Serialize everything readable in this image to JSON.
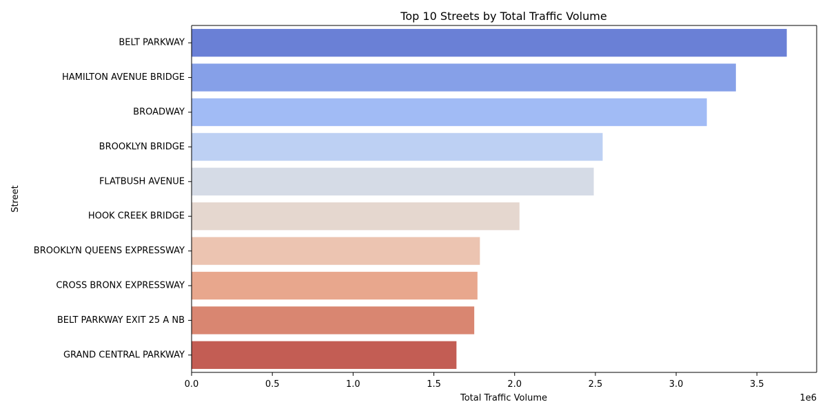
{
  "chart_data": {
    "type": "bar",
    "orientation": "horizontal",
    "title": "Top 10 Streets by Total Traffic Volume",
    "xlabel": "Total Traffic Volume",
    "ylabel": "Street",
    "x_scale_label": "1e6",
    "xlim": [
      0,
      3870000
    ],
    "x_ticks": [
      0,
      500000,
      1000000,
      1500000,
      2000000,
      2500000,
      3000000,
      3500000
    ],
    "x_tick_labels": [
      "0.0",
      "0.5",
      "1.0",
      "1.5",
      "2.0",
      "2.5",
      "3.0",
      "3.5"
    ],
    "grid": false,
    "legend": "none",
    "categories": [
      "BELT PARKWAY",
      "HAMILTON AVENUE BRIDGE",
      "BROADWAY",
      "BROOKLYN BRIDGE",
      "FLATBUSH AVENUE",
      "HOOK CREEK BRIDGE",
      "BROOKLYN QUEENS EXPRESSWAY",
      "CROSS BRONX EXPRESSWAY",
      "BELT PARKWAY EXIT 25 A NB",
      "GRAND CENTRAL PARKWAY"
    ],
    "values": [
      3685000,
      3370000,
      3190000,
      2545000,
      2490000,
      2030000,
      1785000,
      1770000,
      1750000,
      1640000
    ],
    "colors": [
      "#6a80d6",
      "#86a0e8",
      "#a1bbf5",
      "#bdd0f3",
      "#d5dbe6",
      "#e5d7cf",
      "#ecc4b1",
      "#e8a78d",
      "#d98671",
      "#c35d54"
    ]
  }
}
